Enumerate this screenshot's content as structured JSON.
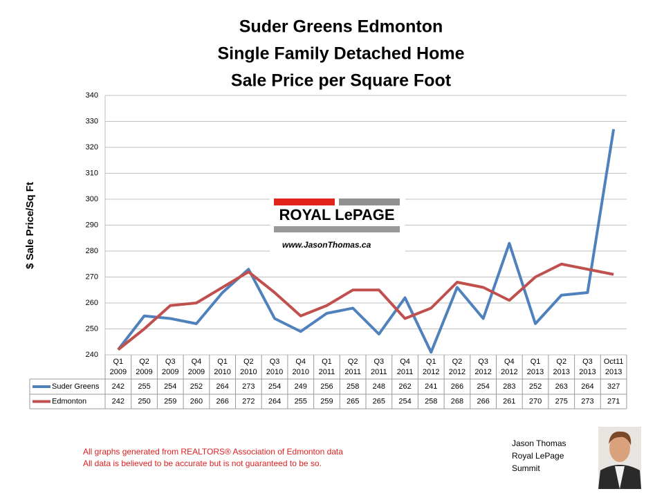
{
  "chart_data": {
    "type": "line",
    "title": [
      "Suder Greens Edmonton",
      "Single Family Detached Home",
      "Sale Price per Square Foot"
    ],
    "y_label": "$ Sale Price/Sq Ft",
    "categories": [
      [
        "Q1",
        "2009"
      ],
      [
        "Q2",
        "2009"
      ],
      [
        "Q3",
        "2009"
      ],
      [
        "Q4",
        "2009"
      ],
      [
        "Q1",
        "2010"
      ],
      [
        "Q2",
        "2010"
      ],
      [
        "Q3",
        "2010"
      ],
      [
        "Q4",
        "2010"
      ],
      [
        "Q1",
        "2011"
      ],
      [
        "Q2",
        "2011"
      ],
      [
        "Q3",
        "2011"
      ],
      [
        "Q4",
        "2011"
      ],
      [
        "Q1",
        "2012"
      ],
      [
        "Q2",
        "2012"
      ],
      [
        "Q3",
        "2012"
      ],
      [
        "Q4",
        "2012"
      ],
      [
        "Q1",
        "2013"
      ],
      [
        "Q2",
        "2013"
      ],
      [
        "Q3",
        "2013"
      ],
      [
        "Oct11",
        "2013"
      ]
    ],
    "series": [
      {
        "name": "Suder Greens",
        "color": "#4f81bd",
        "values": [
          242,
          255,
          254,
          252,
          264,
          273,
          254,
          249,
          256,
          258,
          248,
          262,
          241,
          266,
          254,
          283,
          252,
          263,
          264,
          327
        ]
      },
      {
        "name": "Edmonton",
        "color": "#c0504d",
        "values": [
          242,
          250,
          259,
          260,
          266,
          272,
          264,
          255,
          259,
          265,
          265,
          254,
          258,
          268,
          266,
          261,
          270,
          275,
          273,
          271
        ]
      }
    ],
    "ylim": [
      240,
      340
    ],
    "yticks": [
      240,
      250,
      260,
      270,
      280,
      290,
      300,
      310,
      320,
      330,
      340
    ],
    "grid": true,
    "logo": {
      "brand": "ROYAL LePAGE",
      "url": "www.JasonThomas.ca"
    },
    "notes": [
      "All graphs generated from REALTORS® Association of Edmonton data",
      "All data is believed to be accurate but is not guaranteed to be so."
    ],
    "author": [
      "Jason Thomas",
      "Royal LePage",
      "Summit"
    ]
  }
}
